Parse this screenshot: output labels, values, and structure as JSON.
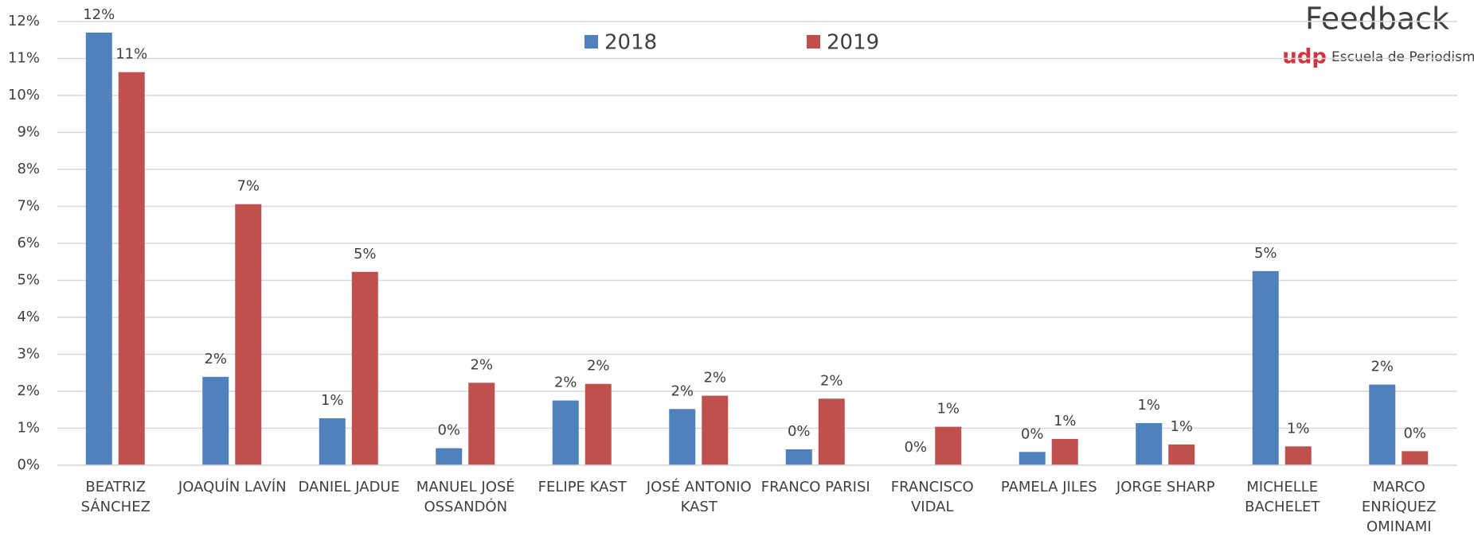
{
  "chart_data": {
    "type": "bar",
    "categories": [
      "BEATRIZ SÁNCHEZ",
      "JOAQUÍN LAVÍN",
      "DANIEL JADUE",
      "MANUEL JOSÉ OSSANDÓN",
      "FELIPE KAST",
      "JOSÉ ANTONIO KAST",
      "FRANCO PARISI",
      "FRANCISCO VIDAL",
      "PAMELA JILES",
      "JORGE SHARP",
      "MICHELLE BACHELET",
      "MARCO ENRÍQUEZ OMINAMI"
    ],
    "series": [
      {
        "name": "2018",
        "color": "#4f81bd",
        "values": [
          11.7,
          2.39,
          1.27,
          0.46,
          1.75,
          1.52,
          0.43,
          0,
          0.36,
          1.14,
          5.25,
          2.18
        ],
        "value_labels": [
          "12%",
          "2%",
          "1%",
          "0%",
          "2%",
          "2%",
          "0%",
          "0%",
          "0%",
          "1%",
          "5%",
          "2%"
        ]
      },
      {
        "name": "2019",
        "color": "#c0504d",
        "values": [
          10.63,
          7.06,
          5.23,
          2.23,
          2.2,
          1.88,
          1.8,
          1.04,
          0.71,
          0.56,
          0.51,
          0.38
        ],
        "value_labels": [
          "11%",
          "7%",
          "5%",
          "2%",
          "2%",
          "2%",
          "2%",
          "1%",
          "1%",
          "1%",
          "1%",
          "0%"
        ]
      }
    ],
    "ylim": [
      0,
      12
    ],
    "yticks": [
      {
        "value": 0,
        "label": "0%"
      },
      {
        "value": 1,
        "label": "1%"
      },
      {
        "value": 2,
        "label": "2%"
      },
      {
        "value": 3,
        "label": "3%"
      },
      {
        "value": 4,
        "label": "4%"
      },
      {
        "value": 5,
        "label": "5%"
      },
      {
        "value": 6,
        "label": "6%"
      },
      {
        "value": 7,
        "label": "7%"
      },
      {
        "value": 8,
        "label": "8%"
      },
      {
        "value": 9,
        "label": "9%"
      },
      {
        "value": 10,
        "label": "10%"
      },
      {
        "value": 11,
        "label": "11%"
      },
      {
        "value": 12,
        "label": "12%"
      }
    ],
    "grid": true,
    "legend": "top",
    "logo": {
      "brand": "Feedback",
      "org": "udp",
      "school": "Escuela de Periodismo"
    }
  }
}
